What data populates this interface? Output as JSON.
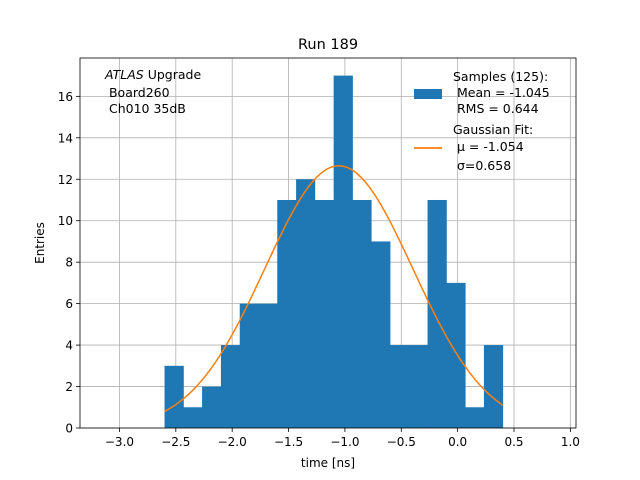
{
  "chart_data": {
    "type": "bar",
    "title": "Run 189",
    "xlabel": "time [ns]",
    "ylabel": "Entries",
    "xlim": [
      -3.35,
      1.05
    ],
    "ylim": [
      0,
      17.85
    ],
    "grid": true,
    "xticks": [
      -3.0,
      -2.5,
      -2.0,
      -1.5,
      -1.0,
      -0.5,
      0.0,
      0.5,
      1.0
    ],
    "xtick_labels": [
      "−3.0",
      "−2.5",
      "−2.0",
      "−1.5",
      "−1.0",
      "−0.5",
      "0.0",
      "0.5",
      "1.0"
    ],
    "yticks": [
      0,
      2,
      4,
      6,
      8,
      10,
      12,
      14,
      16
    ],
    "ytick_labels": [
      "0",
      "2",
      "4",
      "6",
      "8",
      "10",
      "12",
      "14",
      "16"
    ],
    "bin_edges": [
      -2.6,
      -2.433,
      -2.267,
      -2.1,
      -1.933,
      -1.767,
      -1.6,
      -1.433,
      -1.267,
      -1.1,
      -0.933,
      -0.767,
      -0.6,
      -0.433,
      -0.267,
      -0.1,
      0.067,
      0.233,
      0.4
    ],
    "histogram": {
      "name": "Samples (125):",
      "values": [
        3,
        1,
        2,
        4,
        6,
        6,
        11,
        12,
        11,
        17,
        11,
        9,
        4,
        4,
        11,
        7,
        1,
        4
      ],
      "color": "#1f77b4"
    },
    "fit": {
      "name": "Gaussian Fit:",
      "mu": -1.054,
      "sigma": 0.658,
      "amplitude": 12.65,
      "range": [
        -2.6,
        0.4
      ],
      "color": "#ff7f0e"
    },
    "legend": {
      "placement": "top-right",
      "entries": [
        {
          "label": "Samples (125):",
          "lines": [
            "Samples (125):",
            " Mean = -1.045",
            " RMS = 0.644"
          ]
        },
        {
          "label": "Gaussian Fit:",
          "lines": [
            "Gaussian Fit:",
            " μ = -1.054",
            " σ=0.658"
          ]
        }
      ]
    },
    "annotation": {
      "italic": "ATLAS",
      "rest": " Upgrade",
      "lines": [
        " Board260",
        " Ch010 35dB"
      ]
    }
  }
}
